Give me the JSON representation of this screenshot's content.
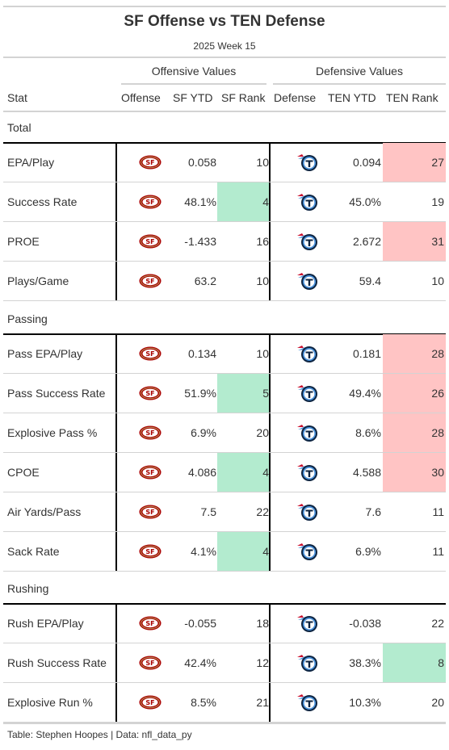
{
  "title": "SF Offense vs TEN Defense",
  "subtitle": "2025 Week 15",
  "spanners": {
    "offense": "Offensive Values",
    "defense": "Defensive Values"
  },
  "columns": {
    "stat": "Stat",
    "offense": "Offense",
    "sf_ytd": "SF YTD",
    "sf_rank": "SF Rank",
    "defense": "Defense",
    "ten_ytd": "TEN YTD",
    "ten_rank": "TEN Rank"
  },
  "colors": {
    "good": "#b3ebcf",
    "bad": "#ffc4c4",
    "niners_red": "#aa0000",
    "niners_gold": "#b3995d",
    "titans_navy": "#0c2340",
    "titans_blue": "#4b92db"
  },
  "icons": {
    "offense": "sf-49ers-logo-icon",
    "defense": "titans-logo-icon"
  },
  "groups": [
    {
      "label": "Total",
      "rows": [
        {
          "stat": "EPA/Play",
          "sf_ytd": "0.058",
          "sf_rank": "10",
          "sf_rank_status": "none",
          "ten_ytd": "0.094",
          "ten_rank": "27",
          "ten_rank_status": "bad"
        },
        {
          "stat": "Success Rate",
          "sf_ytd": "48.1%",
          "sf_rank": "4",
          "sf_rank_status": "good",
          "ten_ytd": "45.0%",
          "ten_rank": "19",
          "ten_rank_status": "none"
        },
        {
          "stat": "PROE",
          "sf_ytd": "-1.433",
          "sf_rank": "16",
          "sf_rank_status": "none",
          "ten_ytd": "2.672",
          "ten_rank": "31",
          "ten_rank_status": "bad"
        },
        {
          "stat": "Plays/Game",
          "sf_ytd": "63.2",
          "sf_rank": "10",
          "sf_rank_status": "none",
          "ten_ytd": "59.4",
          "ten_rank": "10",
          "ten_rank_status": "none"
        }
      ]
    },
    {
      "label": "Passing",
      "rows": [
        {
          "stat": "Pass EPA/Play",
          "sf_ytd": "0.134",
          "sf_rank": "10",
          "sf_rank_status": "none",
          "ten_ytd": "0.181",
          "ten_rank": "28",
          "ten_rank_status": "bad"
        },
        {
          "stat": "Pass Success Rate",
          "sf_ytd": "51.9%",
          "sf_rank": "5",
          "sf_rank_status": "good",
          "ten_ytd": "49.4%",
          "ten_rank": "26",
          "ten_rank_status": "bad"
        },
        {
          "stat": "Explosive Pass %",
          "sf_ytd": "6.9%",
          "sf_rank": "20",
          "sf_rank_status": "none",
          "ten_ytd": "8.6%",
          "ten_rank": "28",
          "ten_rank_status": "bad"
        },
        {
          "stat": "CPOE",
          "sf_ytd": "4.086",
          "sf_rank": "4",
          "sf_rank_status": "good",
          "ten_ytd": "4.588",
          "ten_rank": "30",
          "ten_rank_status": "bad"
        },
        {
          "stat": "Air Yards/Pass",
          "sf_ytd": "7.5",
          "sf_rank": "22",
          "sf_rank_status": "none",
          "ten_ytd": "7.6",
          "ten_rank": "11",
          "ten_rank_status": "none"
        },
        {
          "stat": "Sack Rate",
          "sf_ytd": "4.1%",
          "sf_rank": "4",
          "sf_rank_status": "good",
          "ten_ytd": "6.9%",
          "ten_rank": "11",
          "ten_rank_status": "none"
        }
      ]
    },
    {
      "label": "Rushing",
      "rows": [
        {
          "stat": "Rush EPA/Play",
          "sf_ytd": "-0.055",
          "sf_rank": "18",
          "sf_rank_status": "none",
          "ten_ytd": "-0.038",
          "ten_rank": "22",
          "ten_rank_status": "none"
        },
        {
          "stat": "Rush Success Rate",
          "sf_ytd": "42.4%",
          "sf_rank": "12",
          "sf_rank_status": "none",
          "ten_ytd": "38.3%",
          "ten_rank": "8",
          "ten_rank_status": "good"
        },
        {
          "stat": "Explosive Run %",
          "sf_ytd": "8.5%",
          "sf_rank": "21",
          "sf_rank_status": "none",
          "ten_ytd": "10.3%",
          "ten_rank": "20",
          "ten_rank_status": "none"
        }
      ]
    }
  ],
  "footer": "Table: Stephen Hoopes | Data: nfl_data_py"
}
